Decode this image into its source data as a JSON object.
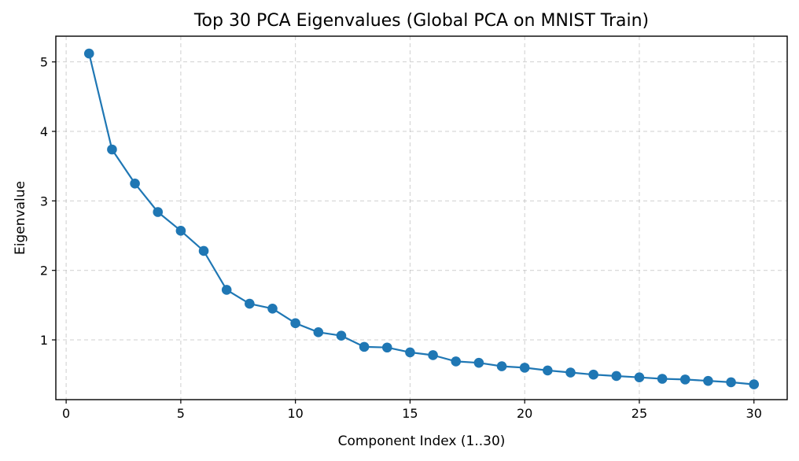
{
  "chart_data": {
    "type": "line",
    "title": "Top 30 PCA Eigenvalues (Global PCA on MNIST Train)",
    "xlabel": "Component Index (1..30)",
    "ylabel": "Eigenvalue",
    "xlim": [
      -0.45,
      31.45
    ],
    "ylim": [
      0.14,
      5.37
    ],
    "xticks": [
      0,
      5,
      10,
      15,
      20,
      25,
      30
    ],
    "yticks": [
      1,
      2,
      3,
      4,
      5
    ],
    "grid": true,
    "color": "#1f77b4",
    "marker": "circle",
    "series": [
      {
        "x": [
          1,
          2,
          3,
          4,
          5,
          6,
          7,
          8,
          9,
          10,
          11,
          12,
          13,
          14,
          15,
          16,
          17,
          18,
          19,
          20,
          21,
          22,
          23,
          24,
          25,
          26,
          27,
          28,
          29,
          30
        ],
        "values": [
          5.12,
          3.74,
          3.25,
          2.84,
          2.57,
          2.28,
          1.72,
          1.52,
          1.45,
          1.24,
          1.11,
          1.06,
          0.9,
          0.89,
          0.82,
          0.78,
          0.69,
          0.67,
          0.62,
          0.6,
          0.56,
          0.53,
          0.5,
          0.48,
          0.46,
          0.44,
          0.43,
          0.41,
          0.39,
          0.36
        ]
      }
    ]
  }
}
